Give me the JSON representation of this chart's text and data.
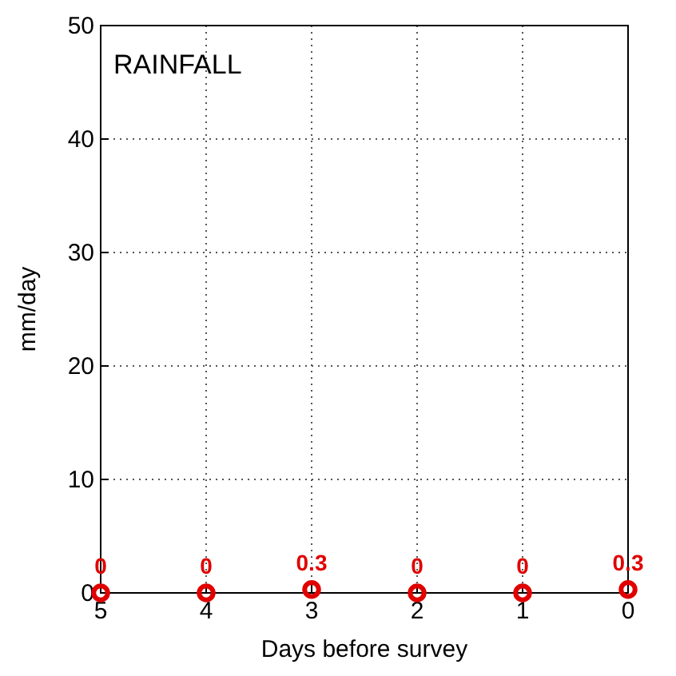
{
  "chart_data": {
    "type": "scatter",
    "title": "RAINFALL",
    "xlabel": "Days before survey",
    "ylabel": "mm/day",
    "x": [
      5,
      4,
      3,
      2,
      1,
      0
    ],
    "series": [
      {
        "color": "#e00000",
        "values": [
          0,
          0,
          0.3,
          0,
          0,
          0.3
        ]
      }
    ],
    "xlim": [
      5,
      0
    ],
    "xticks": [
      5,
      4,
      3,
      2,
      1,
      0
    ],
    "ylim": [
      0,
      50
    ],
    "yticks": [
      0,
      10,
      20,
      30,
      40,
      50
    ],
    "grid": true,
    "marker": "circle",
    "data_labels": true
  }
}
